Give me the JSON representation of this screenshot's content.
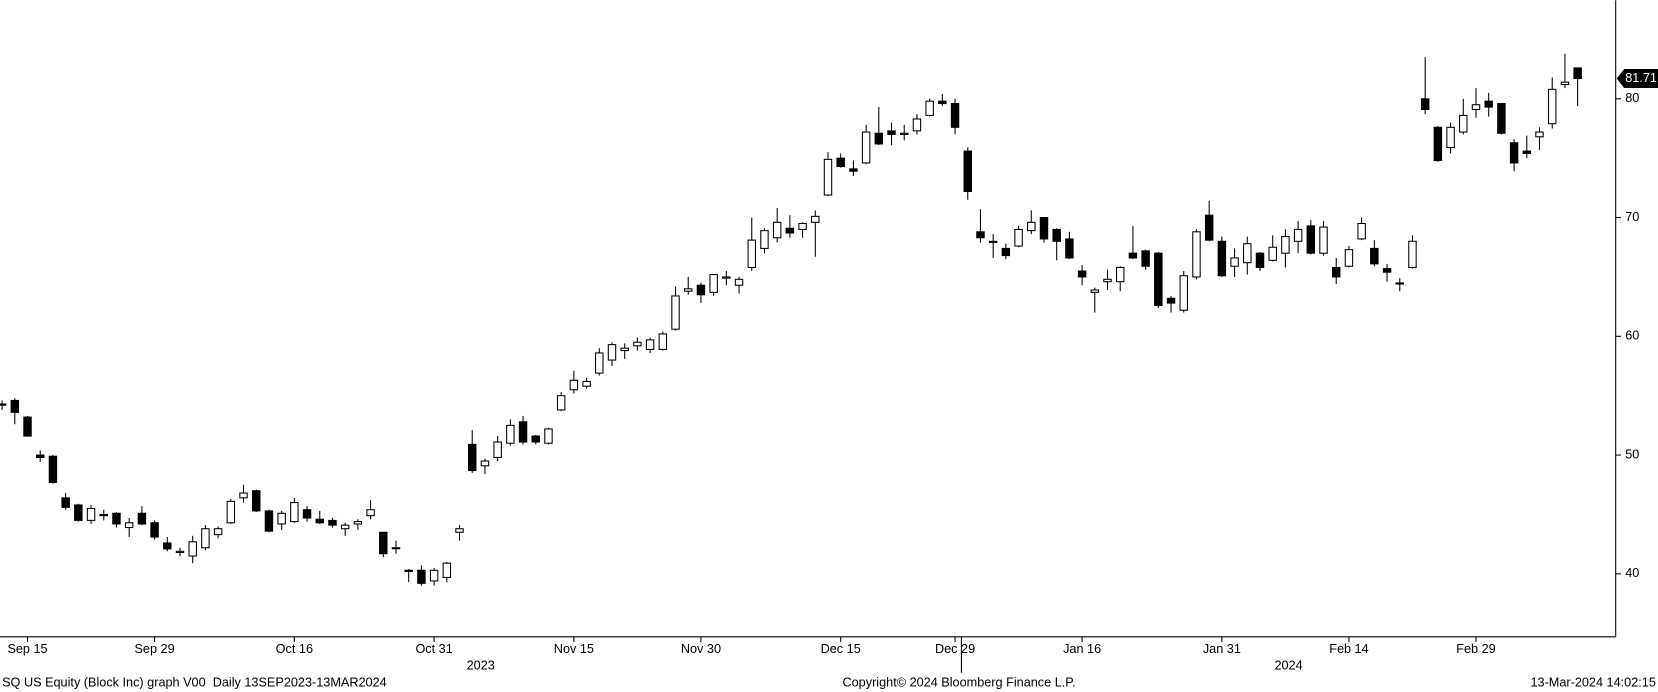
{
  "chart_data": {
    "type": "candlestick",
    "categories": [
      null,
      null,
      "Sep 15",
      null,
      null,
      null,
      null,
      null,
      null,
      null,
      null,
      null,
      "Sep 29",
      null,
      null,
      null,
      null,
      null,
      null,
      null,
      null,
      null,
      null,
      "Oct 16",
      null,
      null,
      null,
      null,
      null,
      null,
      null,
      null,
      null,
      null,
      "Oct 31",
      null,
      null,
      null,
      null,
      null,
      null,
      null,
      null,
      null,
      null,
      "Nov 15",
      null,
      null,
      null,
      null,
      null,
      null,
      null,
      null,
      null,
      "Nov 30",
      null,
      null,
      null,
      null,
      null,
      null,
      null,
      null,
      null,
      null,
      "Dec 15",
      null,
      null,
      null,
      null,
      null,
      null,
      null,
      null,
      "Dec 29",
      null,
      null,
      null,
      null,
      null,
      null,
      null,
      null,
      null,
      "Jan 16",
      null,
      null,
      null,
      null,
      null,
      null,
      null,
      null,
      null,
      null,
      "Jan 31",
      null,
      null,
      null,
      null,
      null,
      null,
      null,
      null,
      null,
      "Feb 14",
      null,
      null,
      null,
      null,
      null,
      null,
      null,
      null,
      null,
      "Feb 29",
      null,
      null,
      null,
      null,
      null,
      null,
      null,
      null
    ],
    "x_group_labels": [
      "2023",
      "2024"
    ],
    "open": [
      54.3,
      54.6,
      53.2,
      50,
      49.9,
      46.4,
      45.8,
      44.5,
      45,
      45.1,
      43.9,
      45.1,
      44.3,
      42.6,
      41.8,
      41.5,
      42.2,
      43.3,
      44.3,
      46.4,
      47,
      45.3,
      44.2,
      44.4,
      45.4,
      44.6,
      44.5,
      43.8,
      44.2,
      44.9,
      43.5,
      42.2,
      40.3,
      40.3,
      39.4,
      39.7,
      43.5,
      50.9,
      49.1,
      49.8,
      51,
      52.8,
      51.6,
      51,
      53.8,
      55.5,
      55.8,
      56.9,
      58,
      58.8,
      59.2,
      58.9,
      58.9,
      60.6,
      63.8,
      64.3,
      63.7,
      64.9,
      64.3,
      65.8,
      67.4,
      68.3,
      69.1,
      69,
      69.6,
      71.9,
      75,
      74.1,
      74.6,
      77.1,
      77.3,
      77,
      77.3,
      78.6,
      79.8,
      79.6,
      75.6,
      68.8,
      68,
      67.4,
      67.6,
      68.9,
      70,
      69,
      68.2,
      65.5,
      63.7,
      64.6,
      64.6,
      67,
      67.2,
      67,
      63.2,
      62.2,
      65,
      70.2,
      68,
      65.9,
      66.2,
      67,
      66.4,
      67,
      68,
      69.3,
      67,
      65.8,
      65.9,
      68.2,
      67.4,
      65.7,
      64.5,
      65.8,
      80,
      77.6,
      75.9,
      77.2,
      79.1,
      79.8,
      79.6,
      76.3,
      75.6,
      76.8,
      77.9,
      81.2,
      82.6
    ],
    "high": [
      54.6,
      54.8,
      53.3,
      50.4,
      50,
      46.8,
      45.9,
      45.8,
      45.4,
      45.2,
      44.7,
      45.7,
      44.5,
      43.1,
      42.2,
      43.2,
      44.1,
      44,
      46.3,
      47.5,
      47.1,
      45.4,
      45.3,
      46.4,
      45.7,
      45.3,
      44.7,
      44.3,
      44.6,
      46.2,
      43.5,
      42.8,
      40.4,
      40.7,
      40.5,
      41,
      44.1,
      52.1,
      49.7,
      51.6,
      53,
      53.3,
      51.7,
      52.3,
      55.3,
      57.1,
      56.5,
      59,
      59.5,
      59.4,
      59.9,
      59.9,
      60.4,
      64.2,
      65,
      64.5,
      65.2,
      65.5,
      65,
      70,
      69.1,
      70.8,
      70.2,
      69.6,
      70.6,
      75.5,
      75.4,
      74.8,
      77.8,
      79.3,
      78,
      77.8,
      78.7,
      80,
      80.4,
      80,
      75.9,
      70.7,
      68.6,
      67.8,
      69.3,
      70.6,
      70,
      69.1,
      68.8,
      66,
      64.1,
      65.6,
      65.9,
      69.3,
      67.3,
      67.1,
      63.4,
      65.5,
      69,
      71.4,
      68.4,
      67.4,
      68.4,
      67.1,
      68.5,
      69,
      69.7,
      69.8,
      69.7,
      66.6,
      67.6,
      70,
      68.1,
      66.1,
      64.9,
      68.5,
      83.5,
      77.7,
      78,
      80,
      80.9,
      80.5,
      79.6,
      76.6,
      76.9,
      77.6,
      81.8,
      83.8,
      82.6
    ],
    "low": [
      53.8,
      52.6,
      51.6,
      49.4,
      47.6,
      45.4,
      44.4,
      44.2,
      44.5,
      43.9,
      43.1,
      44.1,
      42.9,
      41.9,
      41.5,
      40.9,
      42,
      43,
      44.2,
      46,
      45.2,
      43.5,
      43.7,
      44.3,
      44.4,
      44.2,
      43.9,
      43.2,
      43.7,
      44.6,
      41.4,
      41.7,
      39.3,
      39,
      39,
      39.3,
      42.8,
      48.5,
      48.4,
      49.5,
      50.8,
      50.9,
      50.9,
      50.9,
      53.7,
      55.2,
      55.6,
      56.7,
      57.5,
      58.1,
      58.8,
      58.6,
      58.8,
      60.5,
      63.5,
      62.8,
      63.4,
      64.3,
      63.6,
      65.5,
      67,
      67.9,
      68.3,
      68.3,
      66.7,
      71.8,
      74.2,
      73.5,
      74.5,
      76.1,
      76.1,
      76.5,
      77,
      78.5,
      79.4,
      77,
      71.5,
      67.9,
      66.6,
      66.5,
      67.5,
      68.6,
      67.9,
      66.4,
      66.5,
      64.3,
      62,
      63.9,
      63.8,
      66.5,
      65.6,
      62.4,
      62,
      62,
      64.8,
      68,
      65,
      65,
      65.2,
      65.5,
      66.3,
      65.8,
      67,
      66.9,
      66.8,
      64.4,
      65.8,
      68.1,
      65.9,
      64.6,
      63.8,
      65.7,
      78.7,
      74.7,
      75.4,
      77,
      78.4,
      78.5,
      77,
      73.9,
      75,
      75.7,
      77.5,
      80.9,
      79.4
    ],
    "close": [
      54.2,
      53.6,
      51.6,
      49.8,
      47.7,
      45.6,
      44.5,
      45.5,
      44.9,
      44.2,
      44.3,
      44.2,
      43.1,
      42.1,
      41.9,
      42.7,
      43.8,
      43.8,
      46.1,
      46.8,
      45.3,
      43.6,
      45.1,
      46,
      44.7,
      44.3,
      44.1,
      44.1,
      44.4,
      45.4,
      41.7,
      42.2,
      40.2,
      39.2,
      40.3,
      40.9,
      43.8,
      48.7,
      49.5,
      51.1,
      52.5,
      51.1,
      51.1,
      52.2,
      55,
      56.3,
      56.2,
      58.6,
      59.3,
      59,
      59.5,
      59.7,
      60.2,
      63.4,
      64,
      63.5,
      65.2,
      65,
      64.8,
      68.1,
      68.9,
      69.6,
      68.7,
      69.5,
      70.1,
      74.9,
      74.3,
      73.9,
      77.2,
      76.2,
      77,
      77.1,
      78.3,
      79.8,
      79.6,
      77.6,
      72.2,
      68.3,
      67.9,
      66.8,
      69,
      69.6,
      68.2,
      68,
      66.6,
      65,
      63.9,
      64.8,
      65.8,
      66.6,
      65.9,
      62.6,
      62.8,
      65.1,
      68.8,
      68.1,
      65.1,
      66.6,
      67.8,
      65.8,
      67.5,
      68.4,
      69,
      67,
      69.2,
      65,
      67.3,
      69.5,
      66.1,
      65.4,
      64.4,
      68,
      79.1,
      74.8,
      77.6,
      78.6,
      79.5,
      79.3,
      77.1,
      74.6,
      75.4,
      77.2,
      80.8,
      81.4,
      81.71
    ],
    "up_color": "#ffffff",
    "down_color": "#000000",
    "ylim": [
      34.7,
      88.3
    ],
    "yticks": [
      40,
      50,
      60,
      70,
      80
    ]
  },
  "footer": {
    "left": "SQ US Equity (Block Inc) graph V00  Daily 13SEP2023-13MAR2024",
    "center": "Copyright© 2024 Bloomberg Finance L.P.",
    "right": "13-Mar-2024 14:02:15"
  }
}
